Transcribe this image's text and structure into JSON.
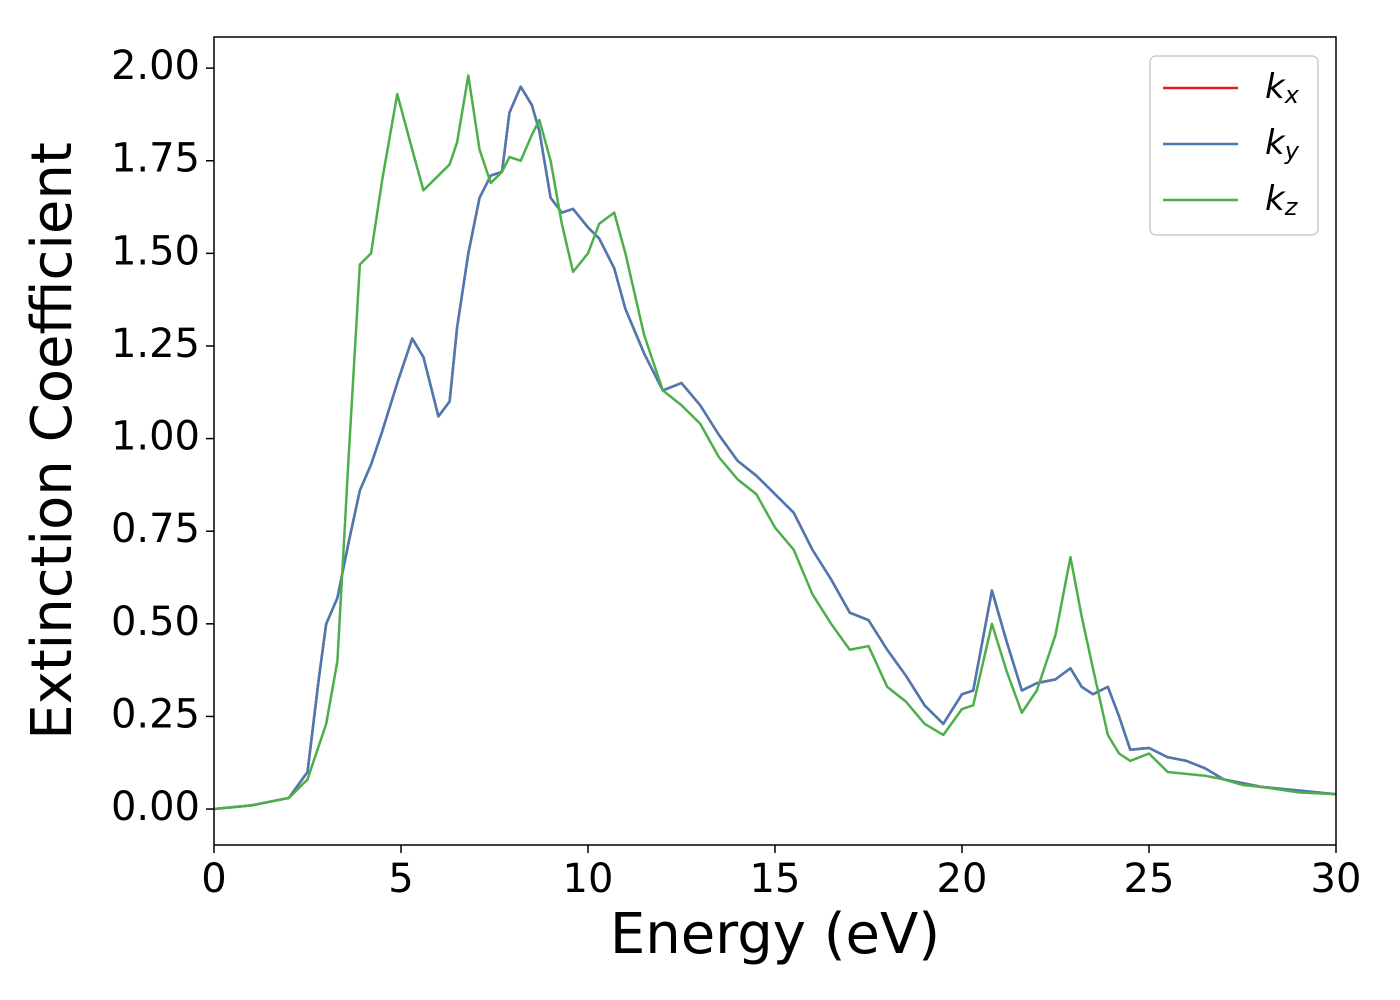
{
  "chart_data": {
    "type": "line",
    "xlabel": "Energy (eV)",
    "ylabel": "Extinction Coefficient",
    "x": [
      0,
      1,
      2,
      2.5,
      2.8,
      3,
      3.3,
      3.6,
      3.9,
      4.2,
      4.5,
      4.9,
      5.3,
      5.6,
      6,
      6.3,
      6.5,
      6.8,
      7.1,
      7.4,
      7.7,
      7.9,
      8.2,
      8.5,
      8.7,
      9,
      9.3,
      9.6,
      10,
      10.3,
      10.7,
      11,
      11.5,
      12,
      12.5,
      13,
      13.5,
      14,
      14.5,
      15,
      15.5,
      16,
      16.5,
      17,
      17.5,
      18,
      18.5,
      19,
      19.5,
      20,
      20.3,
      20.8,
      21.2,
      21.6,
      22,
      22.5,
      22.9,
      23.2,
      23.5,
      23.9,
      24.2,
      24.5,
      25,
      25.5,
      26,
      26.5,
      27,
      27.5,
      28,
      29,
      30
    ],
    "series": [
      {
        "name": "kx",
        "color": "#e41a1c",
        "values": [
          0,
          0.01,
          0.03,
          0.1,
          0.35,
          0.5,
          0.57,
          0.72,
          0.86,
          0.93,
          1.02,
          1.15,
          1.27,
          1.22,
          1.06,
          1.1,
          1.3,
          1.5,
          1.65,
          1.71,
          1.72,
          1.88,
          1.95,
          1.9,
          1.83,
          1.65,
          1.61,
          1.62,
          1.57,
          1.54,
          1.46,
          1.35,
          1.23,
          1.13,
          1.15,
          1.09,
          1.01,
          0.94,
          0.9,
          0.85,
          0.8,
          0.7,
          0.62,
          0.53,
          0.51,
          0.43,
          0.36,
          0.28,
          0.23,
          0.31,
          0.32,
          0.59,
          0.45,
          0.32,
          0.34,
          0.35,
          0.38,
          0.33,
          0.31,
          0.33,
          0.25,
          0.16,
          0.165,
          0.14,
          0.13,
          0.11,
          0.08,
          0.07,
          0.06,
          0.05,
          0.04
        ]
      },
      {
        "name": "ky",
        "color": "#4a7ab4",
        "values": [
          0,
          0.01,
          0.03,
          0.1,
          0.35,
          0.5,
          0.57,
          0.72,
          0.86,
          0.93,
          1.02,
          1.15,
          1.27,
          1.22,
          1.06,
          1.1,
          1.3,
          1.5,
          1.65,
          1.71,
          1.72,
          1.88,
          1.95,
          1.9,
          1.83,
          1.65,
          1.61,
          1.62,
          1.57,
          1.54,
          1.46,
          1.35,
          1.23,
          1.13,
          1.15,
          1.09,
          1.01,
          0.94,
          0.9,
          0.85,
          0.8,
          0.7,
          0.62,
          0.53,
          0.51,
          0.43,
          0.36,
          0.28,
          0.23,
          0.31,
          0.32,
          0.59,
          0.45,
          0.32,
          0.34,
          0.35,
          0.38,
          0.33,
          0.31,
          0.33,
          0.25,
          0.16,
          0.165,
          0.14,
          0.13,
          0.11,
          0.08,
          0.07,
          0.06,
          0.05,
          0.04
        ]
      },
      {
        "name": "kz",
        "color": "#4daf4a",
        "values": [
          0,
          0.01,
          0.03,
          0.08,
          0.17,
          0.23,
          0.4,
          0.95,
          1.47,
          1.5,
          1.7,
          1.93,
          1.78,
          1.67,
          1.71,
          1.74,
          1.8,
          1.98,
          1.78,
          1.69,
          1.72,
          1.76,
          1.75,
          1.82,
          1.86,
          1.75,
          1.58,
          1.45,
          1.5,
          1.58,
          1.61,
          1.5,
          1.28,
          1.13,
          1.09,
          1.04,
          0.95,
          0.89,
          0.85,
          0.76,
          0.7,
          0.58,
          0.5,
          0.43,
          0.44,
          0.33,
          0.29,
          0.23,
          0.2,
          0.27,
          0.28,
          0.5,
          0.37,
          0.26,
          0.32,
          0.47,
          0.68,
          0.52,
          0.38,
          0.2,
          0.15,
          0.13,
          0.15,
          0.1,
          0.095,
          0.09,
          0.08,
          0.065,
          0.06,
          0.045,
          0.04
        ]
      }
    ],
    "xlim": [
      0,
      30
    ],
    "xticks": [
      0,
      5,
      10,
      15,
      20,
      25,
      30
    ],
    "ylim": [
      -0.097,
      2.084
    ],
    "yticks": [
      {
        "value": 0,
        "label": "0.00"
      },
      {
        "value": 0.25,
        "label": "0.25"
      },
      {
        "value": 0.5,
        "label": "0.50"
      },
      {
        "value": 0.75,
        "label": "0.75"
      },
      {
        "value": 1,
        "label": "1.00"
      },
      {
        "value": 1.25,
        "label": "1.25"
      },
      {
        "value": 1.5,
        "label": "1.50"
      },
      {
        "value": 1.75,
        "label": "1.75"
      },
      {
        "value": 2,
        "label": "2.00"
      }
    ],
    "legend": "upper right",
    "grid": false
  }
}
